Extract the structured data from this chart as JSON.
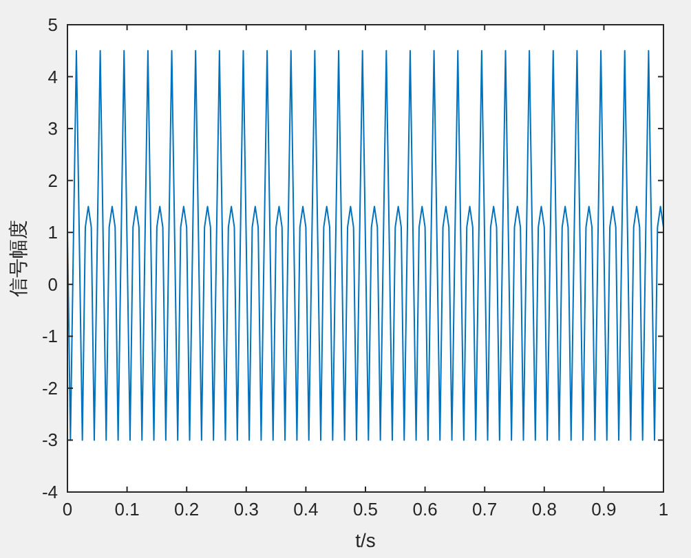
{
  "chart_data": {
    "type": "line",
    "xlabel": "t/s",
    "ylabel": "信号幅度",
    "xlim": [
      0,
      1
    ],
    "ylim": [
      -4,
      5
    ],
    "xticks": [
      0,
      0.1,
      0.2,
      0.3,
      0.4,
      0.5,
      0.6,
      0.7,
      0.8,
      0.9,
      1
    ],
    "yticks": [
      -4,
      -3,
      -2,
      -1,
      0,
      1,
      2,
      3,
      4,
      5
    ],
    "grid": false,
    "marker": "none",
    "line_style": "solid",
    "series": [
      {
        "color": "#0072bd",
        "x": [
          0,
          0.005,
          0.01,
          0.015,
          0.02,
          0.025,
          0.03,
          0.035,
          0.04,
          0.045,
          0.05,
          0.055,
          0.06,
          0.065,
          0.07,
          0.075,
          0.08,
          0.085,
          0.09,
          0.095,
          0.1,
          0.105,
          0.11,
          0.115,
          0.12,
          0.125,
          0.13,
          0.135,
          0.14,
          0.145,
          0.15,
          0.155,
          0.16,
          0.165,
          0.17,
          0.175,
          0.18,
          0.185,
          0.19,
          0.195,
          0.2,
          0.205,
          0.21,
          0.215,
          0.22,
          0.225,
          0.23,
          0.235,
          0.24,
          0.245,
          0.25,
          0.255,
          0.26,
          0.265,
          0.27,
          0.275,
          0.28,
          0.285,
          0.29,
          0.295,
          0.3,
          0.305,
          0.31,
          0.315,
          0.32,
          0.325,
          0.33,
          0.335,
          0.34,
          0.345,
          0.35,
          0.355,
          0.36,
          0.365,
          0.37,
          0.375,
          0.38,
          0.385,
          0.39,
          0.395,
          0.4,
          0.405,
          0.41,
          0.415,
          0.42,
          0.425,
          0.43,
          0.435,
          0.44,
          0.445,
          0.45,
          0.455,
          0.46,
          0.465,
          0.47,
          0.475,
          0.48,
          0.485,
          0.49,
          0.495,
          0.5,
          0.505,
          0.51,
          0.515,
          0.52,
          0.525,
          0.53,
          0.535,
          0.54,
          0.545,
          0.55,
          0.555,
          0.56,
          0.565,
          0.57,
          0.575,
          0.58,
          0.585,
          0.59,
          0.595,
          0.6,
          0.605,
          0.61,
          0.615,
          0.62,
          0.625,
          0.63,
          0.635,
          0.64,
          0.645,
          0.65,
          0.655,
          0.66,
          0.665,
          0.67,
          0.675,
          0.68,
          0.685,
          0.69,
          0.695,
          0.7,
          0.705,
          0.71,
          0.715,
          0.72,
          0.725,
          0.73,
          0.735,
          0.74,
          0.745,
          0.75,
          0.755,
          0.76,
          0.765,
          0.77,
          0.775,
          0.78,
          0.785,
          0.79,
          0.795,
          0.8,
          0.805,
          0.81,
          0.815,
          0.82,
          0.825,
          0.83,
          0.835,
          0.84,
          0.845,
          0.85,
          0.855,
          0.86,
          0.865,
          0.87,
          0.875,
          0.88,
          0.885,
          0.89,
          0.895,
          0.9,
          0.905,
          0.91,
          0.915,
          0.92,
          0.925,
          0.93,
          0.935,
          0.94,
          0.945,
          0.95,
          0.955,
          0.96,
          0.965,
          0.97,
          0.975,
          0.98,
          0.985,
          0.99,
          0.995,
          1
        ],
        "values": [
          1.1,
          -3,
          0.8,
          4.5,
          0.8,
          -3,
          1.1,
          1.5,
          1.1,
          -3,
          0.8,
          4.5,
          0.8,
          -3,
          1.1,
          1.5,
          1.1,
          -3,
          0.8,
          4.5,
          0.8,
          -3,
          1.1,
          1.5,
          1.1,
          -3,
          0.8,
          4.5,
          0.8,
          -3,
          1.1,
          1.5,
          1.1,
          -3,
          0.8,
          4.5,
          0.8,
          -3,
          1.1,
          1.5,
          1.1,
          -3,
          0.8,
          4.5,
          0.8,
          -3,
          1.1,
          1.5,
          1.1,
          -3,
          0.8,
          4.5,
          0.8,
          -3,
          1.1,
          1.5,
          1.1,
          -3,
          0.8,
          4.5,
          0.8,
          -3,
          1.1,
          1.5,
          1.1,
          -3,
          0.8,
          4.5,
          0.8,
          -3,
          1.1,
          1.5,
          1.1,
          -3,
          0.8,
          4.5,
          0.8,
          -3,
          1.1,
          1.5,
          1.1,
          -3,
          0.8,
          4.5,
          0.8,
          -3,
          1.1,
          1.5,
          1.1,
          -3,
          0.8,
          4.5,
          0.8,
          -3,
          1.1,
          1.5,
          1.1,
          -3,
          0.8,
          4.5,
          0.8,
          -3,
          1.1,
          1.5,
          1.1,
          -3,
          0.8,
          4.5,
          0.8,
          -3,
          1.1,
          1.5,
          1.1,
          -3,
          0.8,
          4.5,
          0.8,
          -3,
          1.1,
          1.5,
          1.1,
          -3,
          0.8,
          4.5,
          0.8,
          -3,
          1.1,
          1.5,
          1.1,
          -3,
          0.8,
          4.5,
          0.8,
          -3,
          1.1,
          1.5,
          1.1,
          -3,
          0.8,
          4.5,
          0.8,
          -3,
          1.1,
          1.5,
          1.1,
          -3,
          0.8,
          4.5,
          0.8,
          -3,
          1.1,
          1.5,
          1.1,
          -3,
          0.8,
          4.5,
          0.8,
          -3,
          1.1,
          1.5,
          1.1,
          -3,
          0.8,
          4.5,
          0.8,
          -3,
          1.1,
          1.5,
          1.1,
          -3,
          0.8,
          4.5,
          0.8,
          -3,
          1.1,
          1.5,
          1.1,
          -3,
          0.8,
          4.5,
          0.8,
          -3,
          1.1,
          1.5,
          1.1,
          -3,
          0.8,
          4.5,
          0.8,
          -3,
          1.1,
          1.5,
          1.1,
          -3,
          0.8,
          4.5,
          0.8,
          -3,
          1.1,
          1.5,
          1.1
        ]
      }
    ]
  }
}
